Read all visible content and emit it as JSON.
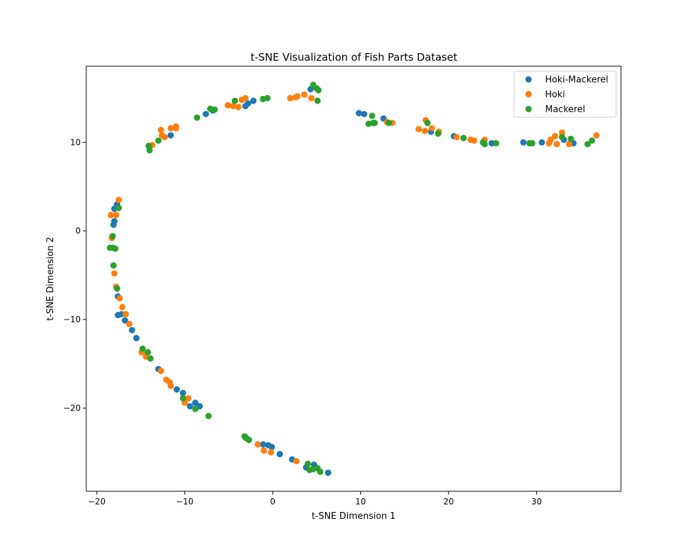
{
  "chart_data": {
    "type": "scatter",
    "title": "t-SNE Visualization of Fish Parts Dataset",
    "xlabel": "t-SNE Dimension 1",
    "ylabel": "t-SNE Dimension 2",
    "xlim": [
      -21.2,
      39.6
    ],
    "ylim": [
      -29.4,
      18.6
    ],
    "xticks": [
      -20,
      -10,
      0,
      10,
      20,
      30
    ],
    "yticks": [
      -20,
      -10,
      0,
      10
    ],
    "grid": false,
    "legend_position": "top-right",
    "series": [
      {
        "name": "Hoki-Mackerel",
        "color": "#1f77b4",
        "points": [
          [
            -11.6,
            10.8
          ],
          [
            -7.6,
            13.2
          ],
          [
            -6.8,
            13.6
          ],
          [
            -3.1,
            14.1
          ],
          [
            -2.8,
            14.4
          ],
          [
            -2.2,
            14.7
          ],
          [
            4.3,
            16.0
          ],
          [
            9.8,
            13.3
          ],
          [
            10.4,
            13.2
          ],
          [
            12.6,
            12.7
          ],
          [
            18.0,
            11.2
          ],
          [
            20.6,
            10.7
          ],
          [
            24.9,
            9.9
          ],
          [
            28.5,
            10.0
          ],
          [
            30.6,
            10.0
          ],
          [
            33.1,
            10.3
          ],
          [
            34.2,
            9.9
          ],
          [
            -18.1,
            0.7
          ],
          [
            -18.0,
            1.1
          ],
          [
            -18.0,
            2.5
          ],
          [
            -17.7,
            3.0
          ],
          [
            -17.6,
            -7.4
          ],
          [
            -17.6,
            -9.5
          ],
          [
            -17.2,
            -9.4
          ],
          [
            -16.8,
            -10.1
          ],
          [
            -16.0,
            -11.2
          ],
          [
            -15.5,
            -12.1
          ],
          [
            -13.0,
            -15.6
          ],
          [
            -10.9,
            -17.9
          ],
          [
            -10.2,
            -18.3
          ],
          [
            -9.4,
            -19.8
          ],
          [
            -8.8,
            -19.4
          ],
          [
            -8.3,
            -19.8
          ],
          [
            -3.1,
            -23.3
          ],
          [
            -1.1,
            -24.1
          ],
          [
            -0.5,
            -24.2
          ],
          [
            -0.1,
            -24.4
          ],
          [
            0.8,
            -25.2
          ],
          [
            2.2,
            -25.8
          ],
          [
            3.8,
            -26.7
          ],
          [
            4.7,
            -26.4
          ],
          [
            6.3,
            -27.3
          ]
        ]
      },
      {
        "name": "Hoki",
        "color": "#ff7f0e",
        "points": [
          [
            -13.7,
            9.7
          ],
          [
            -12.7,
            11.4
          ],
          [
            -12.6,
            10.8
          ],
          [
            -12.3,
            10.6
          ],
          [
            -11.6,
            11.6
          ],
          [
            -11.0,
            11.8
          ],
          [
            -11.0,
            11.6
          ],
          [
            -5.1,
            14.2
          ],
          [
            -4.5,
            14.1
          ],
          [
            -3.9,
            14.0
          ],
          [
            -3.5,
            14.8
          ],
          [
            -3.1,
            15.0
          ],
          [
            2.0,
            15.0
          ],
          [
            2.6,
            15.1
          ],
          [
            2.8,
            15.2
          ],
          [
            3.6,
            15.4
          ],
          [
            4.4,
            15.0
          ],
          [
            13.0,
            12.3
          ],
          [
            13.6,
            12.2
          ],
          [
            16.6,
            11.5
          ],
          [
            17.3,
            11.3
          ],
          [
            17.4,
            12.5
          ],
          [
            18.1,
            11.6
          ],
          [
            18.9,
            11.2
          ],
          [
            20.9,
            10.6
          ],
          [
            22.5,
            10.3
          ],
          [
            22.9,
            10.2
          ],
          [
            24.1,
            10.3
          ],
          [
            31.4,
            9.9
          ],
          [
            31.6,
            10.3
          ],
          [
            32.1,
            10.7
          ],
          [
            32.3,
            9.8
          ],
          [
            32.9,
            11.1
          ],
          [
            33.7,
            9.8
          ],
          [
            36.8,
            10.8
          ],
          [
            -18.3,
            -0.8
          ],
          [
            -18.4,
            1.8
          ],
          [
            -17.8,
            1.8
          ],
          [
            -17.5,
            3.5
          ],
          [
            -18.0,
            -4.8
          ],
          [
            -17.8,
            -6.3
          ],
          [
            -17.4,
            -7.6
          ],
          [
            -17.1,
            -8.6
          ],
          [
            -16.7,
            -9.4
          ],
          [
            -16.3,
            -10.5
          ],
          [
            -14.9,
            -13.7
          ],
          [
            -14.4,
            -14.2
          ],
          [
            -12.7,
            -15.8
          ],
          [
            -12.1,
            -16.8
          ],
          [
            -11.7,
            -17.1
          ],
          [
            -11.6,
            -17.5
          ],
          [
            -10.0,
            -19.4
          ],
          [
            -9.6,
            -18.9
          ],
          [
            -1.7,
            -24.1
          ],
          [
            -1.0,
            -24.8
          ],
          [
            -0.2,
            -25.0
          ],
          [
            2.7,
            -26.0
          ]
        ]
      },
      {
        "name": "Mackerel",
        "color": "#2ca02c",
        "points": [
          [
            -14.1,
            9.6
          ],
          [
            -14.0,
            9.1
          ],
          [
            -13.0,
            10.2
          ],
          [
            -8.6,
            12.8
          ],
          [
            -7.1,
            13.8
          ],
          [
            -6.6,
            13.7
          ],
          [
            -4.3,
            14.7
          ],
          [
            -1.1,
            14.9
          ],
          [
            -0.6,
            15.0
          ],
          [
            4.6,
            16.5
          ],
          [
            5.0,
            16.1
          ],
          [
            5.2,
            15.9
          ],
          [
            5.1,
            14.7
          ],
          [
            10.9,
            12.1
          ],
          [
            11.3,
            13.0
          ],
          [
            11.4,
            12.2
          ],
          [
            11.6,
            12.2
          ],
          [
            13.2,
            12.2
          ],
          [
            17.6,
            12.2
          ],
          [
            18.8,
            11.0
          ],
          [
            21.7,
            10.5
          ],
          [
            23.9,
            10.0
          ],
          [
            24.1,
            9.8
          ],
          [
            25.4,
            9.9
          ],
          [
            29.2,
            9.9
          ],
          [
            29.5,
            9.9
          ],
          [
            32.9,
            10.6
          ],
          [
            33.9,
            10.4
          ],
          [
            35.8,
            9.8
          ],
          [
            36.3,
            10.2
          ],
          [
            -18.5,
            -1.9
          ],
          [
            -18.2,
            -0.6
          ],
          [
            -18.2,
            -1.9
          ],
          [
            -17.9,
            -2.0
          ],
          [
            -17.5,
            2.6
          ],
          [
            -18.1,
            -3.9
          ],
          [
            -17.7,
            -6.5
          ],
          [
            -14.8,
            -13.3
          ],
          [
            -14.2,
            -13.7
          ],
          [
            -13.9,
            -14.4
          ],
          [
            -10.2,
            -18.9
          ],
          [
            -8.8,
            -20.1
          ],
          [
            -7.3,
            -20.9
          ],
          [
            -3.2,
            -23.2
          ],
          [
            -3.0,
            -23.4
          ],
          [
            -2.7,
            -23.6
          ],
          [
            4.0,
            -26.3
          ],
          [
            4.2,
            -27.0
          ],
          [
            4.6,
            -26.9
          ],
          [
            5.1,
            -26.8
          ],
          [
            5.4,
            -27.2
          ]
        ]
      }
    ]
  }
}
